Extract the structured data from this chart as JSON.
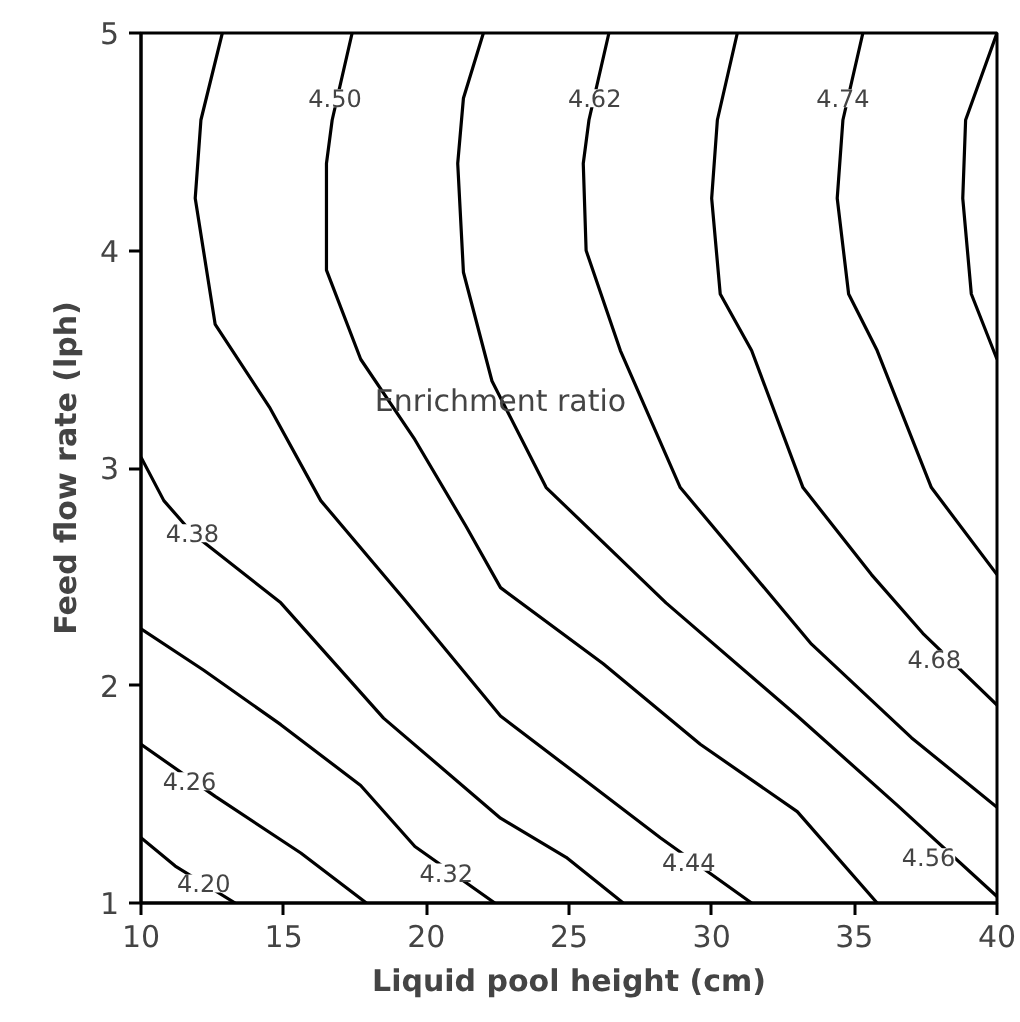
{
  "chart_data": {
    "type": "line",
    "xlabel": "Liquid pool height (cm)",
    "ylabel": "Feed flow rate (lph)",
    "xlim": [
      10,
      40
    ],
    "ylim": [
      1,
      5
    ],
    "xticks": [
      10,
      15,
      20,
      25,
      30,
      35,
      40
    ],
    "yticks": [
      1,
      2,
      3,
      4,
      5
    ],
    "grid": false,
    "marker": "none",
    "line_style": "solid",
    "series": [
      {
        "color": "#000000",
        "x": [
          10,
          11.2,
          13.3
        ],
        "values": [
          1.3,
          1.17,
          1.0
        ]
      },
      {
        "color": "#000000",
        "x": [
          10,
          12.6,
          15.6,
          17.9
        ],
        "values": [
          1.73,
          1.49,
          1.23,
          1.0
        ]
      },
      {
        "color": "#000000",
        "x": [
          10,
          12.2,
          14.9,
          17.7,
          19.6,
          22.4
        ],
        "values": [
          2.26,
          2.07,
          1.82,
          1.54,
          1.26,
          1.0
        ]
      },
      {
        "color": "#000000",
        "x": [
          10,
          10.8,
          11.8,
          14.9,
          18.5,
          22.6,
          24.9,
          26.9
        ],
        "values": [
          3.05,
          2.85,
          2.7,
          2.38,
          1.85,
          1.39,
          1.21,
          1.0
        ]
      },
      {
        "color": "#000000",
        "x": [
          12.85,
          12.1,
          11.9,
          12.6,
          14.5,
          16.3,
          19.2,
          22.6,
          25.4,
          28.2,
          31.4
        ],
        "values": [
          5,
          4.6,
          4.24,
          3.66,
          3.28,
          2.85,
          2.4,
          1.86,
          1.58,
          1.3,
          1.0
        ]
      },
      {
        "color": "#000000",
        "x": [
          17.4,
          16.7,
          16.5,
          16.5,
          17.7,
          19.6,
          21.4,
          22.6,
          26.2,
          29.6,
          33.0,
          35.8
        ],
        "values": [
          5,
          4.6,
          4.4,
          3.91,
          3.5,
          3.13,
          2.73,
          2.45,
          2.1,
          1.73,
          1.42,
          1.0
        ]
      },
      {
        "color": "#000000",
        "x": [
          22.0,
          21.3,
          21.1,
          21.3,
          22.3,
          24.2,
          28.4,
          33.0,
          36.5,
          40
        ],
        "values": [
          5,
          4.7,
          4.4,
          3.9,
          3.4,
          2.91,
          2.38,
          1.86,
          1.45,
          1.03
        ]
      },
      {
        "color": "#000000",
        "x": [
          26.4,
          25.7,
          25.5,
          25.6,
          26.8,
          28.9,
          33.5,
          37.0,
          40
        ],
        "values": [
          5,
          4.6,
          4.4,
          4.0,
          3.54,
          2.91,
          2.19,
          1.76,
          1.44
        ]
      },
      {
        "color": "#000000",
        "x": [
          30.9,
          30.2,
          30.0,
          30.3,
          31.4,
          33.2,
          35.6,
          37.4,
          40
        ],
        "values": [
          5,
          4.6,
          4.24,
          3.8,
          3.54,
          2.91,
          2.51,
          2.24,
          1.91
        ]
      },
      {
        "color": "#000000",
        "x": [
          35.3,
          34.6,
          34.4,
          34.8,
          35.8,
          37.7,
          40
        ],
        "values": [
          5,
          4.6,
          4.24,
          3.8,
          3.54,
          2.91,
          2.51
        ]
      },
      {
        "color": "#000000",
        "x": [
          40,
          38.9,
          38.8,
          39.1,
          40
        ],
        "values": [
          5,
          4.6,
          4.24,
          3.8,
          3.5
        ]
      }
    ],
    "annotations": [
      {
        "text": "4.20",
        "x": 12.2,
        "y": 1.09
      },
      {
        "text": "4.26",
        "x": 11.7,
        "y": 1.56
      },
      {
        "text": "4.32",
        "x": 20.7,
        "y": 1.14
      },
      {
        "text": "4.38",
        "x": 11.8,
        "y": 2.7
      },
      {
        "text": "4.44",
        "x": 29.2,
        "y": 1.19
      },
      {
        "text": "4.50",
        "x": 16.8,
        "y": 4.7
      },
      {
        "text": "4.56",
        "x": 37.6,
        "y": 1.21
      },
      {
        "text": "4.62",
        "x": 25.9,
        "y": 4.7
      },
      {
        "text": "4.68",
        "x": 37.8,
        "y": 2.12
      },
      {
        "text": "4.74",
        "x": 34.6,
        "y": 4.7
      },
      {
        "text": "Enrichment ratio",
        "x": 22.6,
        "y": 3.31
      }
    ]
  }
}
